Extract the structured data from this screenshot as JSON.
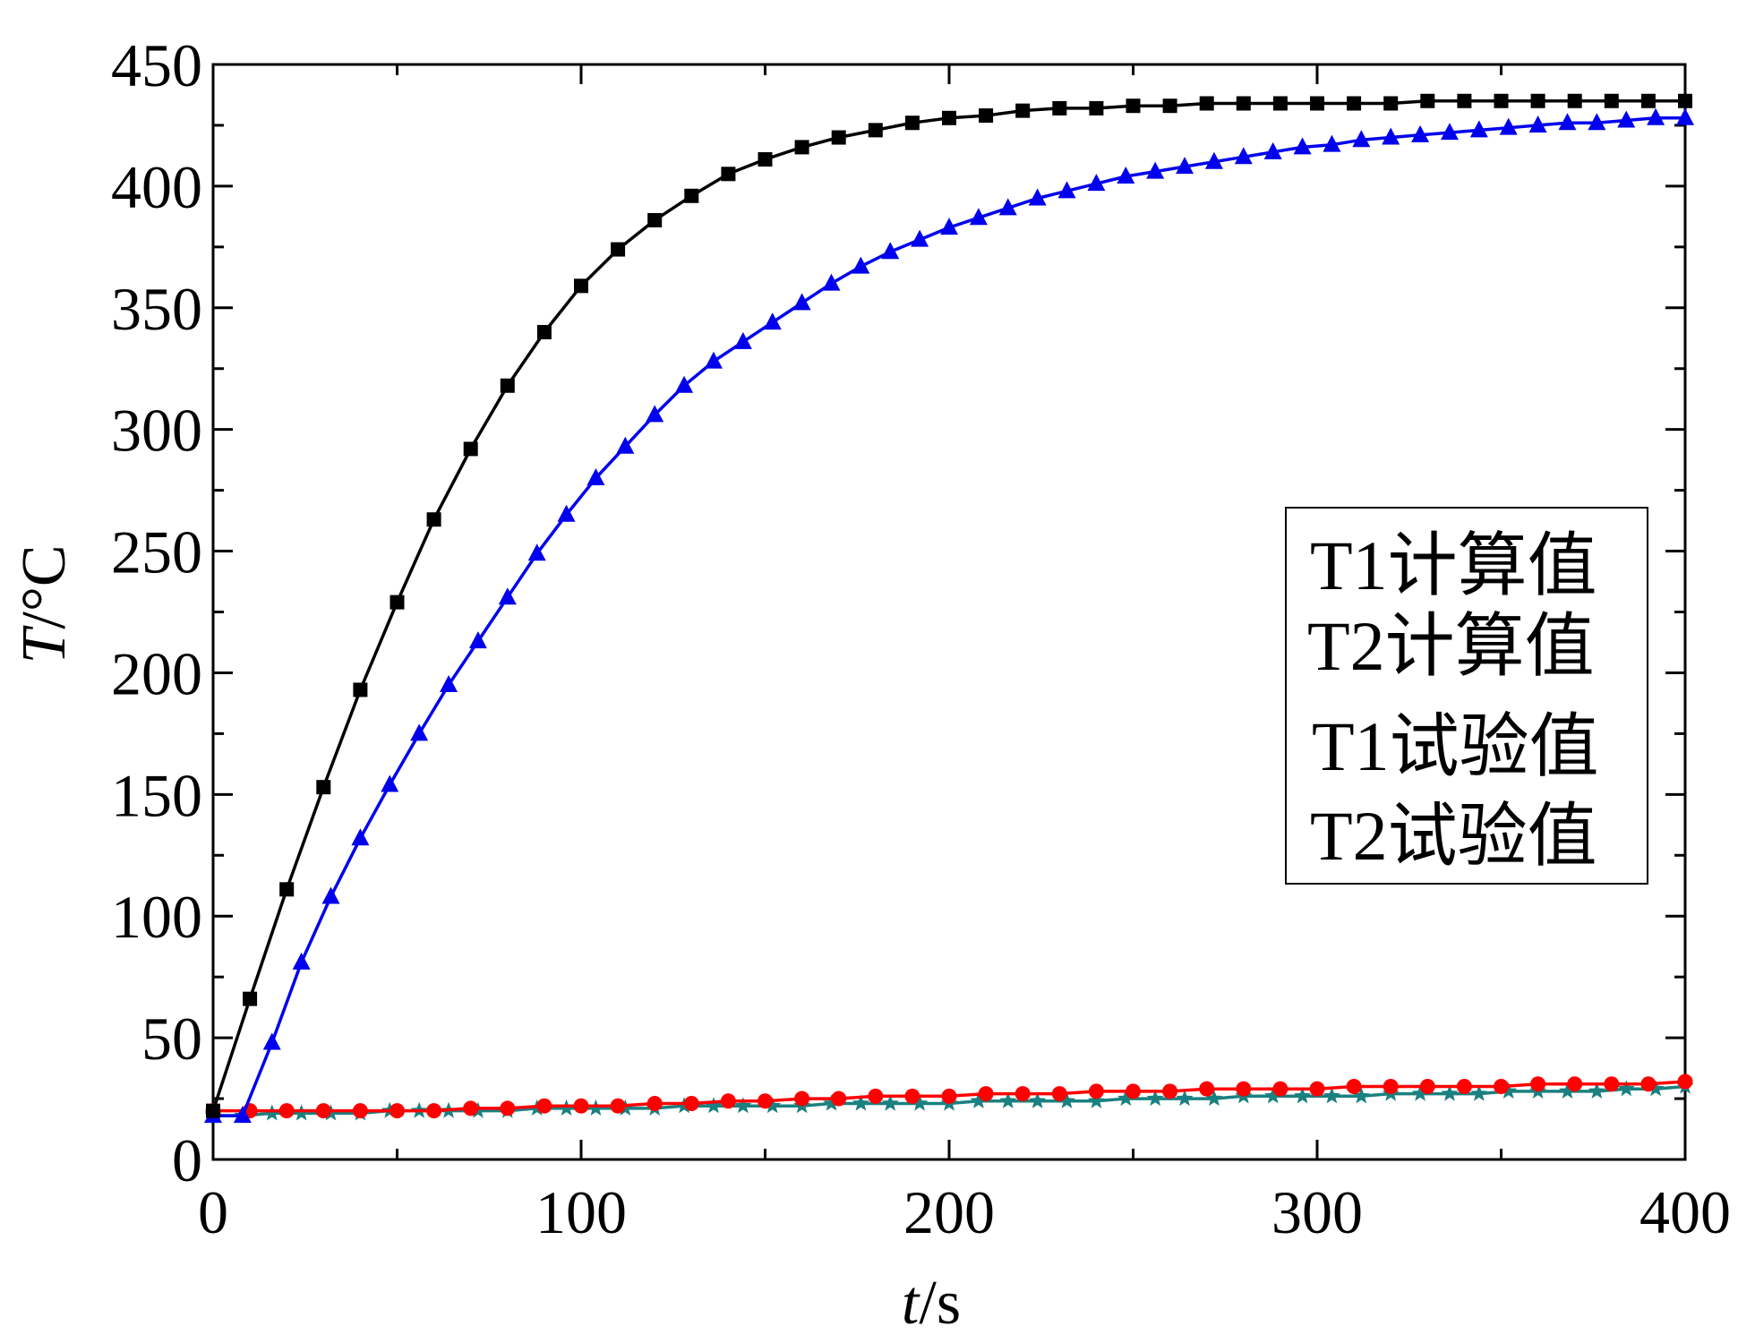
{
  "chart_data": {
    "type": "line",
    "title": "",
    "xlabel_italic": "t",
    "xlabel_rest": "/s",
    "ylabel_italic": "T",
    "ylabel_rest": "/°C",
    "xlim": [
      0,
      400
    ],
    "ylim": [
      0,
      450
    ],
    "xticks": [
      0,
      100,
      200,
      300,
      400
    ],
    "yticks": [
      0,
      50,
      100,
      150,
      200,
      250,
      300,
      350,
      400,
      450
    ],
    "grid": false,
    "legend_position": "right-center",
    "series": [
      {
        "name": "T1计算值",
        "color": "#000000",
        "marker": "square",
        "x": [
          0,
          10,
          20,
          30,
          40,
          50,
          60,
          70,
          80,
          90,
          100,
          110,
          120,
          130,
          140,
          150,
          160,
          170,
          180,
          190,
          200,
          210,
          220,
          230,
          240,
          250,
          260,
          270,
          280,
          290,
          300,
          310,
          320,
          330,
          340,
          350,
          360,
          370,
          380,
          390,
          400
        ],
        "y": [
          20,
          66,
          111,
          153,
          193,
          229,
          263,
          292,
          318,
          340,
          359,
          374,
          386,
          396,
          405,
          411,
          416,
          420,
          423,
          426,
          428,
          429,
          431,
          432,
          432,
          433,
          433,
          434,
          434,
          434,
          434,
          434,
          434,
          435,
          435,
          435,
          435,
          435,
          435,
          435,
          435
        ]
      },
      {
        "name": "T2计算值",
        "color": "#0000ee",
        "marker": "triangle",
        "x": [
          0,
          8,
          16,
          24,
          32,
          40,
          48,
          56,
          64,
          72,
          80,
          88,
          96,
          104,
          112,
          120,
          128,
          136,
          144,
          152,
          160,
          168,
          176,
          184,
          192,
          200,
          208,
          216,
          224,
          232,
          240,
          248,
          256,
          264,
          272,
          280,
          288,
          296,
          304,
          312,
          320,
          328,
          336,
          344,
          352,
          360,
          368,
          376,
          384,
          392,
          400
        ],
        "y": [
          18,
          18,
          48,
          81,
          108,
          132,
          154,
          175,
          195,
          213,
          231,
          249,
          265,
          280,
          293,
          306,
          318,
          328,
          336,
          344,
          352,
          360,
          367,
          373,
          378,
          383,
          387,
          391,
          395,
          398,
          401,
          404,
          406,
          408,
          410,
          412,
          414,
          416,
          417,
          419,
          420,
          421,
          422,
          423,
          424,
          425,
          426,
          426,
          427,
          428,
          428
        ]
      },
      {
        "name": "T1试验值",
        "color": "#ff0000",
        "marker": "circle",
        "x": [
          0,
          10,
          20,
          30,
          40,
          50,
          60,
          70,
          80,
          90,
          100,
          110,
          120,
          130,
          140,
          150,
          160,
          170,
          180,
          190,
          200,
          210,
          220,
          230,
          240,
          250,
          260,
          270,
          280,
          290,
          300,
          310,
          320,
          330,
          340,
          350,
          360,
          370,
          380,
          390,
          400
        ],
        "y": [
          20,
          20,
          20,
          20,
          20,
          20,
          20,
          21,
          21,
          22,
          22,
          22,
          23,
          23,
          24,
          24,
          25,
          25,
          26,
          26,
          26,
          27,
          27,
          27,
          28,
          28,
          28,
          29,
          29,
          29,
          29,
          30,
          30,
          30,
          30,
          30,
          31,
          31,
          31,
          31,
          32
        ]
      },
      {
        "name": "T2试验值",
        "color": "#1a8080",
        "marker": "star",
        "x": [
          0,
          8,
          16,
          24,
          32,
          40,
          48,
          56,
          64,
          72,
          80,
          88,
          96,
          104,
          112,
          120,
          128,
          136,
          144,
          152,
          160,
          168,
          176,
          184,
          192,
          200,
          208,
          216,
          224,
          232,
          240,
          248,
          256,
          264,
          272,
          280,
          288,
          296,
          304,
          312,
          320,
          328,
          336,
          344,
          352,
          360,
          368,
          376,
          384,
          392,
          400
        ],
        "y": [
          18,
          18,
          19,
          19,
          19,
          19,
          20,
          20,
          20,
          20,
          20,
          21,
          21,
          21,
          21,
          21,
          22,
          22,
          22,
          22,
          22,
          23,
          23,
          23,
          23,
          23,
          24,
          24,
          24,
          24,
          24,
          25,
          25,
          25,
          25,
          26,
          26,
          26,
          26,
          26,
          27,
          27,
          27,
          27,
          28,
          28,
          28,
          28,
          29,
          29,
          30
        ]
      }
    ]
  }
}
